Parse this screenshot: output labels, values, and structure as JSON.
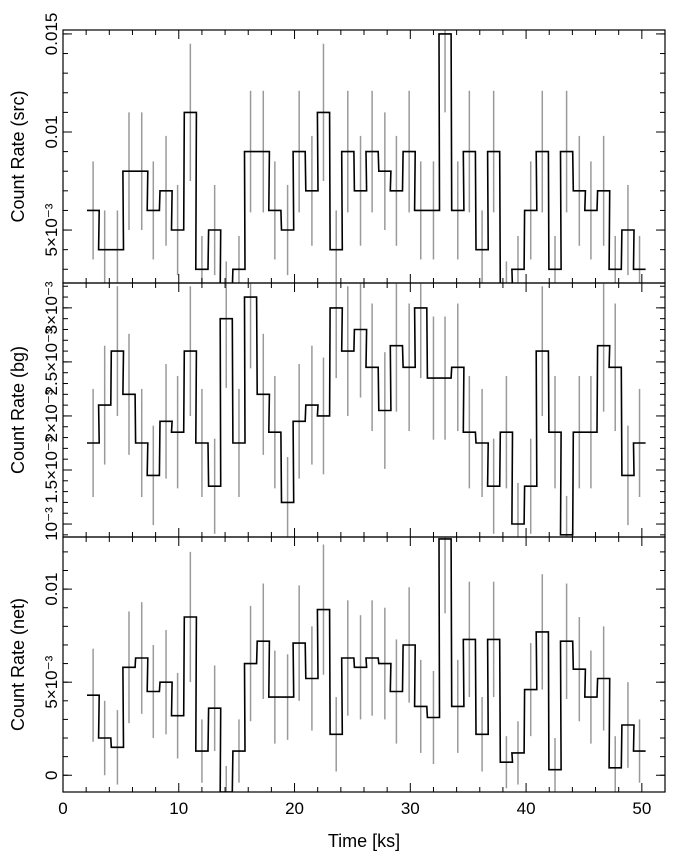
{
  "chart_data": [
    {
      "type": "line",
      "style": "step",
      "ylabel": "Count Rate (src)",
      "xlabel": "",
      "xlim": [
        0,
        52
      ],
      "ylim": [
        0.0023,
        0.0152
      ],
      "y_ticks": [
        {
          "value": 0.005,
          "label": "5×10⁻³"
        },
        {
          "value": 0.01,
          "label": "0.01"
        },
        {
          "value": 0.015,
          "label": "0.015"
        }
      ],
      "bin_width": 1.05,
      "x": [
        2.6,
        3.6,
        4.7,
        5.7,
        6.8,
        7.8,
        8.9,
        9.9,
        11.0,
        12.0,
        13.1,
        14.1,
        15.2,
        16.2,
        17.3,
        18.3,
        19.4,
        20.4,
        21.5,
        22.5,
        23.6,
        24.6,
        25.7,
        26.7,
        27.8,
        28.8,
        29.9,
        30.9,
        32.0,
        33.0,
        34.1,
        35.1,
        36.2,
        37.2,
        38.3,
        39.3,
        40.4,
        41.4,
        42.5,
        43.5,
        44.6,
        45.6,
        46.7,
        47.7,
        48.8,
        49.8
      ],
      "y": [
        0.006,
        0.004,
        0.004,
        0.008,
        0.008,
        0.006,
        0.007,
        0.005,
        0.011,
        0.003,
        0.005,
        0.002,
        0.003,
        0.009,
        0.009,
        0.006,
        0.005,
        0.009,
        0.007,
        0.011,
        0.004,
        0.009,
        0.007,
        0.009,
        0.008,
        0.007,
        0.009,
        0.006,
        0.006,
        0.015,
        0.006,
        0.009,
        0.004,
        0.009,
        0.002,
        0.003,
        0.006,
        0.009,
        0.003,
        0.009,
        0.007,
        0.006,
        0.007,
        0.003,
        0.005,
        0.003
      ],
      "err": [
        0.0025,
        0.002,
        0.002,
        0.003,
        0.003,
        0.0025,
        0.0028,
        0.0023,
        0.0035,
        0.0017,
        0.0023,
        0.0014,
        0.0017,
        0.0031,
        0.0031,
        0.0025,
        0.0023,
        0.0031,
        0.0028,
        0.0035,
        0.002,
        0.0031,
        0.0028,
        0.0031,
        0.003,
        0.0028,
        0.0031,
        0.0025,
        0.0025,
        0.004,
        0.0025,
        0.0031,
        0.002,
        0.0031,
        0.0014,
        0.0017,
        0.0025,
        0.0031,
        0.0017,
        0.0031,
        0.0028,
        0.0025,
        0.0028,
        0.0017,
        0.0023,
        0.0017
      ]
    },
    {
      "type": "line",
      "style": "step",
      "ylabel": "Count Rate (bg)",
      "xlabel": "",
      "xlim": [
        0,
        52
      ],
      "ylim": [
        0.00088,
        0.00323
      ],
      "y_ticks": [
        {
          "value": 0.001,
          "label": "10⁻³"
        },
        {
          "value": 0.0015,
          "label": "1.5×10⁻³"
        },
        {
          "value": 0.002,
          "label": "2×10⁻³"
        },
        {
          "value": 0.0025,
          "label": "2.5×10⁻³"
        },
        {
          "value": 0.003,
          "label": "3×10⁻³"
        }
      ],
      "bin_width": 1.05,
      "x": [
        2.6,
        3.6,
        4.7,
        5.7,
        6.8,
        7.8,
        8.9,
        9.9,
        11.0,
        12.0,
        13.1,
        14.1,
        15.2,
        16.2,
        17.3,
        18.3,
        19.4,
        20.4,
        21.5,
        22.5,
        23.6,
        24.6,
        25.7,
        26.7,
        27.8,
        28.8,
        29.9,
        30.9,
        32.0,
        33.0,
        34.1,
        35.1,
        36.2,
        37.2,
        38.3,
        39.3,
        40.4,
        41.4,
        42.5,
        43.5,
        44.6,
        45.6,
        46.7,
        47.7,
        48.8,
        49.8
      ],
      "y": [
        0.00175,
        0.0021,
        0.0026,
        0.0022,
        0.00175,
        0.00145,
        0.00195,
        0.00185,
        0.0026,
        0.00175,
        0.00135,
        0.0029,
        0.00175,
        0.0031,
        0.0022,
        0.00185,
        0.0012,
        0.00195,
        0.0021,
        0.002,
        0.003,
        0.0026,
        0.0028,
        0.00245,
        0.00205,
        0.00265,
        0.00245,
        0.003,
        0.00235,
        0.00235,
        0.00245,
        0.00185,
        0.00175,
        0.00135,
        0.00185,
        0.001,
        0.00135,
        0.0026,
        0.00185,
        0.0009,
        0.00185,
        0.00185,
        0.00265,
        0.00245,
        0.00145,
        0.00175
      ],
      "err": [
        0.0005,
        0.00055,
        0.0006,
        0.00056,
        0.0005,
        0.00046,
        0.00053,
        0.00052,
        0.0006,
        0.0005,
        0.00044,
        0.00064,
        0.0005,
        0.00066,
        0.00056,
        0.00052,
        0.00042,
        0.00053,
        0.00055,
        0.00054,
        0.00065,
        0.0006,
        0.00063,
        0.00059,
        0.00054,
        0.00061,
        0.00059,
        0.00065,
        0.00057,
        0.00057,
        0.00059,
        0.00052,
        0.0005,
        0.00044,
        0.00052,
        0.00038,
        0.00044,
        0.0006,
        0.00052,
        0.00036,
        0.00052,
        0.00052,
        0.00061,
        0.00059,
        0.00046,
        0.0005
      ]
    },
    {
      "type": "line",
      "style": "step",
      "ylabel": "Count Rate (net)",
      "xlabel": "Time [ks]",
      "xlim": [
        0,
        52
      ],
      "ylim": [
        -0.0009,
        0.0128
      ],
      "x_ticks": [
        0,
        10,
        20,
        30,
        40,
        50
      ],
      "y_ticks": [
        {
          "value": 0,
          "label": "0"
        },
        {
          "value": 0.005,
          "label": "5×10⁻³"
        },
        {
          "value": 0.01,
          "label": "0.01"
        }
      ],
      "bin_width": 1.05,
      "x": [
        2.6,
        3.6,
        4.7,
        5.7,
        6.8,
        7.8,
        8.9,
        9.9,
        11.0,
        12.0,
        13.1,
        14.1,
        15.2,
        16.2,
        17.3,
        18.3,
        19.4,
        20.4,
        21.5,
        22.5,
        23.6,
        24.6,
        25.7,
        26.7,
        27.8,
        28.8,
        29.9,
        30.9,
        32.0,
        33.0,
        34.1,
        35.1,
        36.2,
        37.2,
        38.3,
        39.3,
        40.4,
        41.4,
        42.5,
        43.5,
        44.6,
        45.6,
        46.7,
        47.7,
        48.8,
        49.8
      ],
      "y": [
        0.0043,
        0.002,
        0.0015,
        0.0058,
        0.0063,
        0.0045,
        0.005,
        0.0032,
        0.0085,
        0.0013,
        0.0036,
        -0.0009,
        0.0013,
        0.006,
        0.0072,
        0.0042,
        0.0042,
        0.0071,
        0.0052,
        0.0089,
        0.0022,
        0.0063,
        0.0058,
        0.0063,
        0.006,
        0.0045,
        0.007,
        0.0037,
        0.0031,
        0.0127,
        0.0037,
        0.0073,
        0.0022,
        0.0073,
        0.0007,
        0.0012,
        0.0046,
        0.0077,
        0.0003,
        0.0072,
        0.0057,
        0.0042,
        0.0052,
        0.0004,
        0.0027,
        0.0013
      ],
      "err": [
        0.0025,
        0.002,
        0.002,
        0.003,
        0.003,
        0.0025,
        0.0028,
        0.0023,
        0.0035,
        0.0017,
        0.0023,
        0.0014,
        0.0017,
        0.0031,
        0.0031,
        0.0025,
        0.0023,
        0.0031,
        0.0028,
        0.0035,
        0.002,
        0.0031,
        0.0028,
        0.0031,
        0.003,
        0.0028,
        0.0031,
        0.0025,
        0.0025,
        0.004,
        0.0025,
        0.0031,
        0.002,
        0.0031,
        0.0014,
        0.0017,
        0.0025,
        0.0031,
        0.0017,
        0.0031,
        0.0028,
        0.0025,
        0.0028,
        0.0017,
        0.0023,
        0.0017
      ]
    }
  ]
}
